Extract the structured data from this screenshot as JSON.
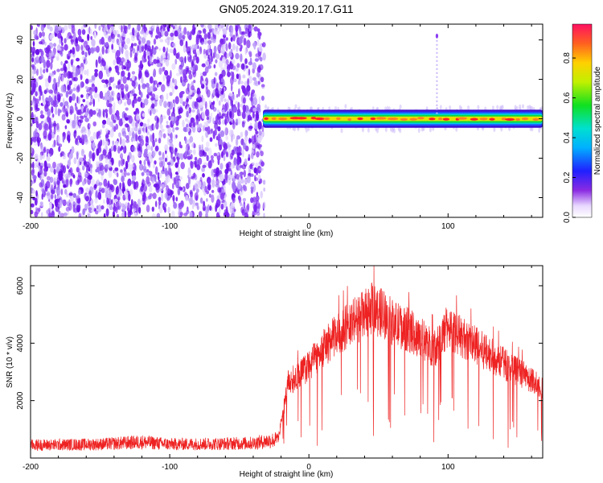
{
  "title": "GN05.2024.319.20.17.G11",
  "colors": {
    "snr_line": "#ee2222",
    "scatter_purple": "#7a1fe0",
    "frame": "#000000"
  },
  "chart_data": [
    {
      "type": "heatmap",
      "xlabel": "Height of straight line (km)",
      "ylabel": "Frequency (Hz)",
      "xlim": [
        -200,
        168
      ],
      "ylim": [
        -50,
        48
      ],
      "xticks": [
        -200,
        -100,
        0,
        100
      ],
      "yticks": [
        -40,
        -20,
        0,
        20,
        40
      ],
      "noise_region": {
        "x_from": -200,
        "x_to": -32
      },
      "signal_band": {
        "x_from": -33,
        "x_to": 168,
        "center_hz": 0,
        "half_width_hz": 3
      },
      "spike": {
        "x": 92,
        "freq_hz": 42
      },
      "colorbar": {
        "label": "Normalized spectral amplitude",
        "range": [
          0.0,
          0.97
        ],
        "ticks": [
          "0.0",
          "0.2",
          "0.4",
          "0.6",
          "0.8"
        ]
      }
    },
    {
      "type": "line",
      "xlabel": "Height of straight line (km)",
      "ylabel": "SNR (10 * v/v)",
      "xlim": [
        -200,
        168
      ],
      "ylim": [
        0,
        6700
      ],
      "xticks": [
        -200,
        -100,
        0,
        100
      ],
      "yticks": [
        2000,
        4000,
        6000
      ],
      "series_envelope": {
        "x": [
          -200,
          -150,
          -120,
          -100,
          -60,
          -40,
          -22,
          -15,
          0,
          10,
          20,
          30,
          40,
          45,
          55,
          60,
          70,
          80,
          90,
          100,
          110,
          120,
          130,
          140,
          150,
          160,
          168
        ],
        "y": [
          450,
          480,
          560,
          480,
          500,
          520,
          650,
          2600,
          3200,
          3800,
          4300,
          4700,
          5000,
          5200,
          5000,
          4700,
          4500,
          4200,
          3800,
          4600,
          4200,
          3900,
          3600,
          3300,
          3000,
          2700,
          2500
        ]
      }
    }
  ]
}
